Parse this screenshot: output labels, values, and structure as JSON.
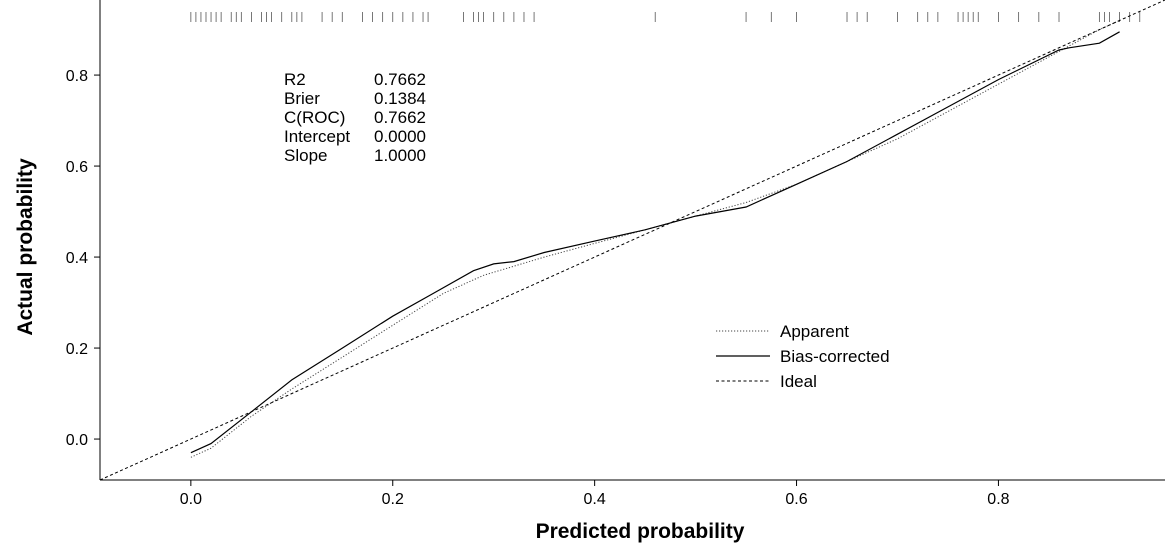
{
  "chart_data": {
    "type": "line",
    "title": "",
    "xlabel": "Predicted probability",
    "ylabel": "Actual probability",
    "xlim": [
      -0.09,
      0.965
    ],
    "ylim": [
      -0.09,
      0.965
    ],
    "x_ticks": [
      {
        "value": 0.0,
        "label": "0.0"
      },
      {
        "value": 0.2,
        "label": "0.2"
      },
      {
        "value": 0.4,
        "label": "0.4"
      },
      {
        "value": 0.6,
        "label": "0.6"
      },
      {
        "value": 0.8,
        "label": "0.8"
      }
    ],
    "y_ticks": [
      {
        "value": 0.0,
        "label": "0.0"
      },
      {
        "value": 0.2,
        "label": "0.2"
      },
      {
        "value": 0.4,
        "label": "0.4"
      },
      {
        "value": 0.6,
        "label": "0.6"
      },
      {
        "value": 0.8,
        "label": "0.8"
      }
    ],
    "grid": false,
    "legend_position": "center-right",
    "stats": [
      {
        "name": "R2",
        "value": "0.7662"
      },
      {
        "name": "Brier",
        "value": "0.1384"
      },
      {
        "name": "C(ROC)",
        "value": "0.7662"
      },
      {
        "name": "Intercept",
        "value": "0.0000"
      },
      {
        "name": "Slope",
        "value": "1.0000"
      }
    ],
    "series": [
      {
        "name": "Apparent",
        "style": "dotted",
        "x": [
          0.0,
          0.02,
          0.06,
          0.1,
          0.15,
          0.2,
          0.25,
          0.29,
          0.32,
          0.35,
          0.4,
          0.45,
          0.5,
          0.55,
          0.6,
          0.65,
          0.7,
          0.75,
          0.8,
          0.85,
          0.9,
          0.92
        ],
        "y": [
          -0.04,
          -0.02,
          0.05,
          0.11,
          0.18,
          0.25,
          0.32,
          0.36,
          0.38,
          0.4,
          0.43,
          0.46,
          0.49,
          0.52,
          0.56,
          0.61,
          0.66,
          0.72,
          0.78,
          0.84,
          0.9,
          0.92
        ]
      },
      {
        "name": "Bias-corrected",
        "style": "solid",
        "x": [
          0.0,
          0.02,
          0.06,
          0.1,
          0.15,
          0.2,
          0.24,
          0.28,
          0.3,
          0.32,
          0.35,
          0.4,
          0.45,
          0.5,
          0.55,
          0.6,
          0.65,
          0.7,
          0.75,
          0.8,
          0.86,
          0.87,
          0.9,
          0.92
        ],
        "y": [
          -0.03,
          -0.01,
          0.06,
          0.13,
          0.2,
          0.27,
          0.32,
          0.37,
          0.385,
          0.39,
          0.41,
          0.435,
          0.46,
          0.49,
          0.51,
          0.56,
          0.61,
          0.67,
          0.73,
          0.79,
          0.855,
          0.86,
          0.87,
          0.895
        ]
      },
      {
        "name": "Ideal",
        "style": "dashed",
        "x": [
          -0.09,
          0.965
        ],
        "y": [
          -0.09,
          0.965
        ]
      }
    ],
    "rug": [
      0.0,
      0.005,
      0.01,
      0.015,
      0.02,
      0.025,
      0.03,
      0.04,
      0.045,
      0.05,
      0.06,
      0.07,
      0.075,
      0.08,
      0.09,
      0.1,
      0.105,
      0.11,
      0.13,
      0.14,
      0.15,
      0.17,
      0.18,
      0.19,
      0.2,
      0.21,
      0.22,
      0.23,
      0.235,
      0.27,
      0.28,
      0.285,
      0.29,
      0.3,
      0.31,
      0.32,
      0.33,
      0.34,
      0.46,
      0.55,
      0.575,
      0.6,
      0.65,
      0.66,
      0.67,
      0.7,
      0.72,
      0.73,
      0.74,
      0.76,
      0.765,
      0.77,
      0.775,
      0.78,
      0.8,
      0.82,
      0.84,
      0.86,
      0.9,
      0.905,
      0.91,
      0.92,
      0.93,
      0.94
    ]
  }
}
